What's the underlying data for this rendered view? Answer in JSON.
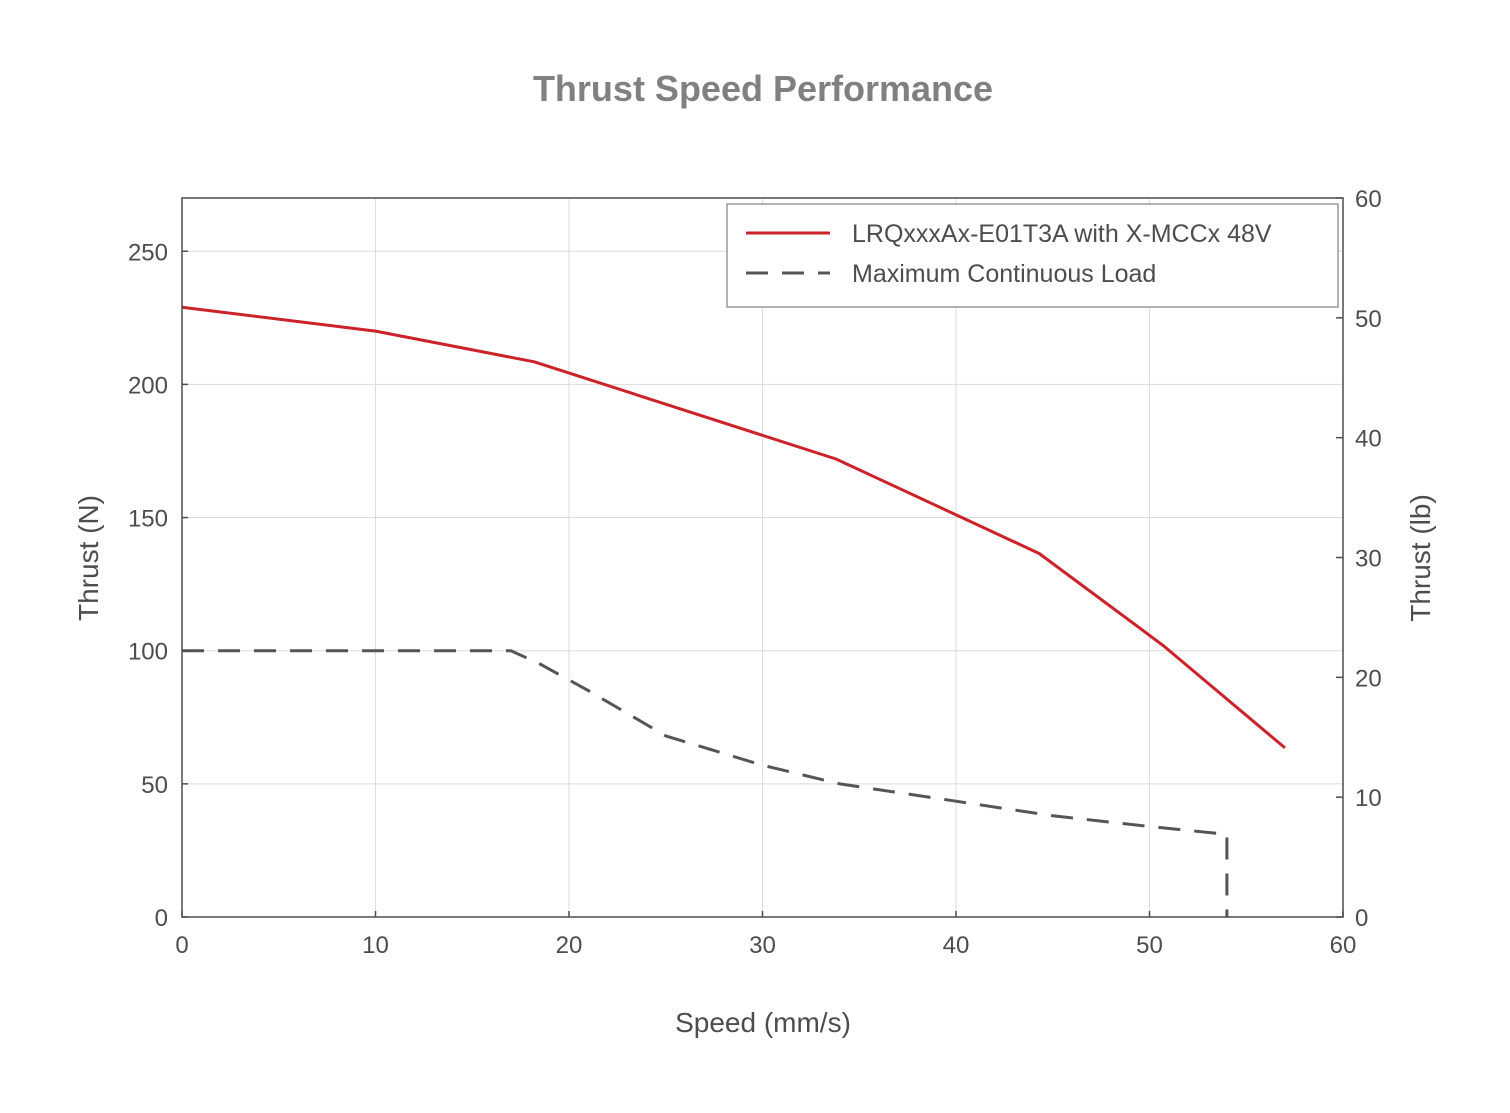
{
  "chart_data": {
    "type": "line",
    "title": "Thrust Speed Performance",
    "xlabel": "Speed (mm/s)",
    "ylabel": "Thrust (N)",
    "y2label": "Thrust (lb)",
    "xlim": [
      0,
      60
    ],
    "ylim": [
      0,
      270
    ],
    "y2lim": [
      0,
      60
    ],
    "xticks": [
      "0",
      "10",
      "20",
      "30",
      "40",
      "50",
      "60"
    ],
    "yticks": [
      "0",
      "50",
      "100",
      "150",
      "200",
      "250"
    ],
    "y2ticks": [
      "0",
      "10",
      "20",
      "30",
      "40",
      "50",
      "60"
    ],
    "grid": true,
    "legend_position": "top-right",
    "series": [
      {
        "name": "LRQxxxAx-E01T3A with X-MCCx 48V",
        "color": "#cc2229",
        "style": "solid",
        "x": [
          0,
          10,
          18.2,
          33.8,
          44.3,
          50.7,
          57.0
        ],
        "y": [
          229,
          220,
          208.5,
          172,
          136.5,
          102,
          63.5
        ]
      },
      {
        "name": "Maximum Continuous Load",
        "color": "#555555",
        "style": "dashed",
        "x": [
          0,
          17.0,
          18.5,
          21,
          25,
          30,
          34,
          40,
          45,
          50,
          54.0,
          54.0
        ],
        "y": [
          100,
          100,
          95,
          85,
          68,
          57,
          50,
          43.5,
          38,
          34,
          31,
          0
        ]
      }
    ]
  }
}
